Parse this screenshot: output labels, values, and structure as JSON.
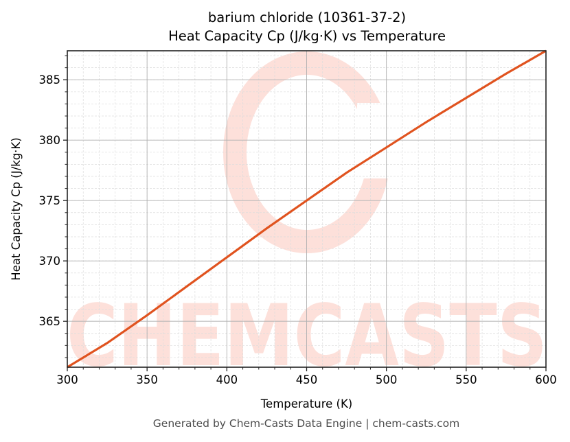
{
  "chart": {
    "title_line1": "barium chloride (10361-37-2)",
    "title_line2": "Heat Capacity Cp (J/kg·K) vs Temperature",
    "xlabel": "Temperature (K)",
    "ylabel": "Heat Capacity Cp (J/kg·K)",
    "footer": "Generated by Chem-Casts Data Engine | chem-casts.com",
    "watermark_text": "CHEMCASTS",
    "line_color": "#e0531f",
    "watermark_color": "#fde0da"
  },
  "chart_data": {
    "type": "line",
    "title": "barium chloride (10361-37-2) Heat Capacity Cp (J/kg·K) vs Temperature",
    "xlabel": "Temperature (K)",
    "ylabel": "Heat Capacity Cp (J/kg·K)",
    "xlim": [
      300,
      600
    ],
    "ylim": [
      361.2,
      387.4
    ],
    "x_ticks": [
      300,
      350,
      400,
      450,
      500,
      550,
      600
    ],
    "y_ticks": [
      365,
      370,
      375,
      380,
      385
    ],
    "grid": true,
    "minor_grid": true,
    "legend": null,
    "series": [
      {
        "name": "Cp",
        "color": "#e0531f",
        "x": [
          300,
          325,
          350,
          375,
          400,
          425,
          450,
          475,
          500,
          525,
          550,
          575,
          600
        ],
        "y": [
          361.2,
          363.2,
          365.5,
          367.9,
          370.3,
          372.7,
          375.0,
          377.3,
          379.4,
          381.5,
          383.5,
          385.5,
          387.4
        ]
      }
    ]
  }
}
